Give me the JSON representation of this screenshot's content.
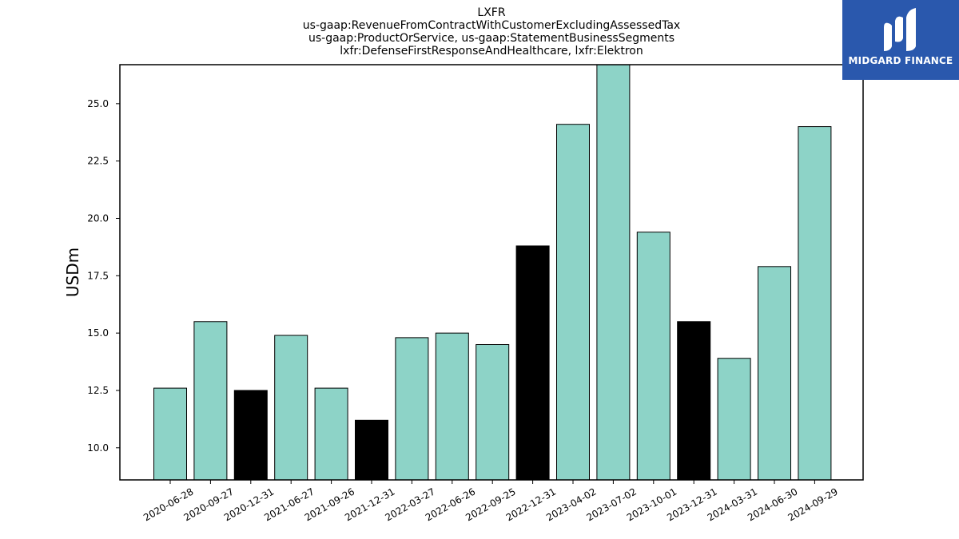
{
  "chart_data": {
    "type": "bar",
    "title_lines": [
      "LXFR",
      "us-gaap:RevenueFromContractWithCustomerExcludingAssessedTax",
      "us-gaap:ProductOrService, us-gaap:StatementBusinessSegments",
      "lxfr:DefenseFirstResponseAndHealthcare, lxfr:Elektron"
    ],
    "ylabel": "USDm",
    "xlabel": "",
    "ylim": [
      8.6,
      26.7
    ],
    "yticks": [
      "10.0",
      "12.5",
      "15.0",
      "17.5",
      "20.0",
      "22.5",
      "25.0"
    ],
    "categories": [
      "2020-06-28",
      "2020-09-27",
      "2020-12-31",
      "2021-06-27",
      "2021-09-26",
      "2021-12-31",
      "2022-03-27",
      "2022-06-26",
      "2022-09-25",
      "2022-12-31",
      "2023-04-02",
      "2023-07-02",
      "2023-10-01",
      "2023-12-31",
      "2024-03-31",
      "2024-06-30",
      "2024-09-29"
    ],
    "values": [
      12.6,
      15.5,
      12.5,
      14.9,
      12.6,
      11.2,
      14.8,
      15.0,
      14.5,
      18.8,
      24.1,
      26.7,
      19.4,
      15.5,
      13.9,
      17.9,
      24.0
    ],
    "highlight": [
      false,
      false,
      true,
      false,
      false,
      true,
      false,
      false,
      false,
      true,
      false,
      false,
      false,
      true,
      false,
      false,
      false
    ],
    "colors": {
      "bar": "#8dd3c7",
      "highlight": "#000000",
      "edge": "#000000"
    },
    "grid": false
  },
  "logo": {
    "text": "MIDGARD FINANCE",
    "background": "#2a58ad",
    "icon": "midgard-logo-icon"
  }
}
